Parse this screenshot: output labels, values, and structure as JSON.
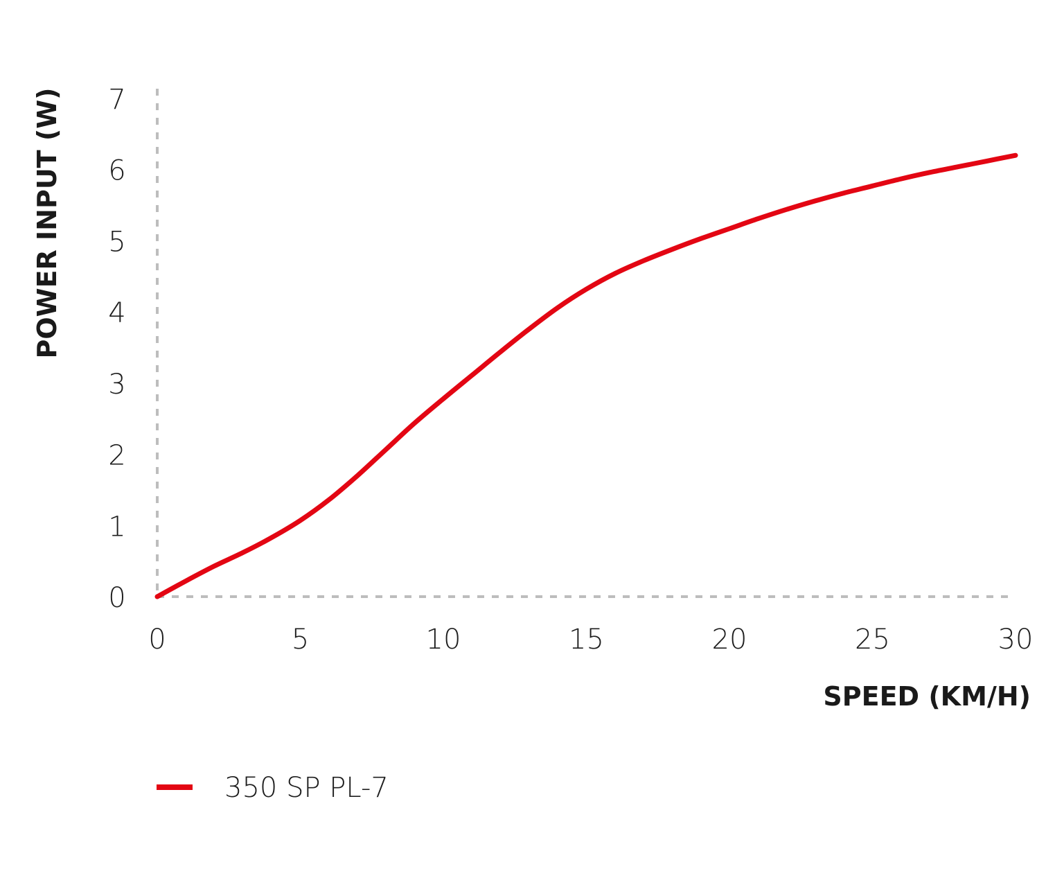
{
  "chart_data": {
    "type": "line",
    "xlabel": "SPEED (KM/H)",
    "ylabel": "POWER INPUT (W)",
    "xlim": [
      0,
      30
    ],
    "ylim": [
      0,
      7
    ],
    "x_ticks": [
      "0",
      "5",
      "10",
      "15",
      "20",
      "25",
      "30"
    ],
    "y_ticks": [
      "0",
      "1",
      "2",
      "3",
      "4",
      "5",
      "6",
      "7"
    ],
    "grid": false,
    "legend_position": "bottom-left",
    "series": [
      {
        "name": "350 SP PL-7",
        "color": "#e30613",
        "x": [
          0,
          1,
          2,
          3,
          4,
          5,
          6,
          7,
          8,
          9,
          10,
          11,
          12,
          13,
          14,
          15,
          16,
          17,
          18,
          19,
          20,
          21,
          22,
          23,
          24,
          25,
          26,
          27,
          28,
          29,
          30
        ],
        "y": [
          0,
          0.22,
          0.43,
          0.62,
          0.83,
          1.07,
          1.36,
          1.7,
          2.07,
          2.44,
          2.78,
          3.11,
          3.44,
          3.76,
          4.06,
          4.32,
          4.54,
          4.72,
          4.88,
          5.03,
          5.17,
          5.31,
          5.44,
          5.56,
          5.67,
          5.77,
          5.87,
          5.96,
          6.04,
          6.12,
          6.2
        ]
      }
    ]
  }
}
